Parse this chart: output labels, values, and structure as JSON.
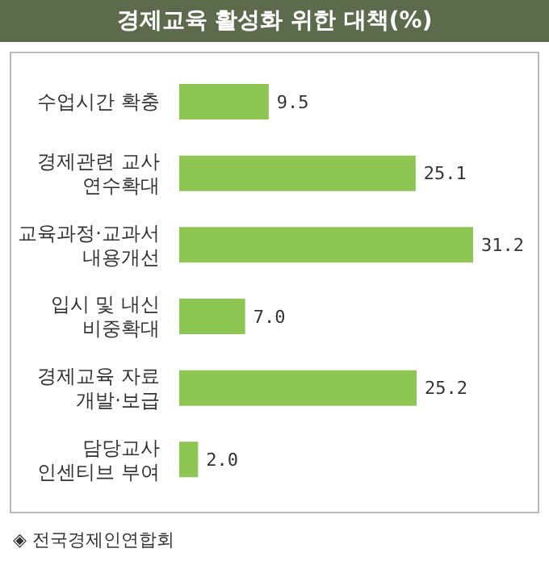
{
  "chart_data": {
    "type": "bar",
    "orientation": "horizontal",
    "title": "경제교육 활성화 위한 대책(%)",
    "categories": [
      "수업시간 확충",
      "경제관련 교사\n연수확대",
      "교육과정·교과서\n내용개선",
      "입시 및 내신\n비중확대",
      "경제교육 자료\n개발·보급",
      "담당교사\n인센티브 부여"
    ],
    "values": [
      9.5,
      25.1,
      31.2,
      7.0,
      25.2,
      2.0
    ],
    "value_labels": [
      "9.5",
      "25.1",
      "31.2",
      "7.0",
      "25.2",
      "2.0"
    ],
    "color": "#8dc653",
    "annotations": [
      "◈ 전국경제인연합회"
    ]
  }
}
